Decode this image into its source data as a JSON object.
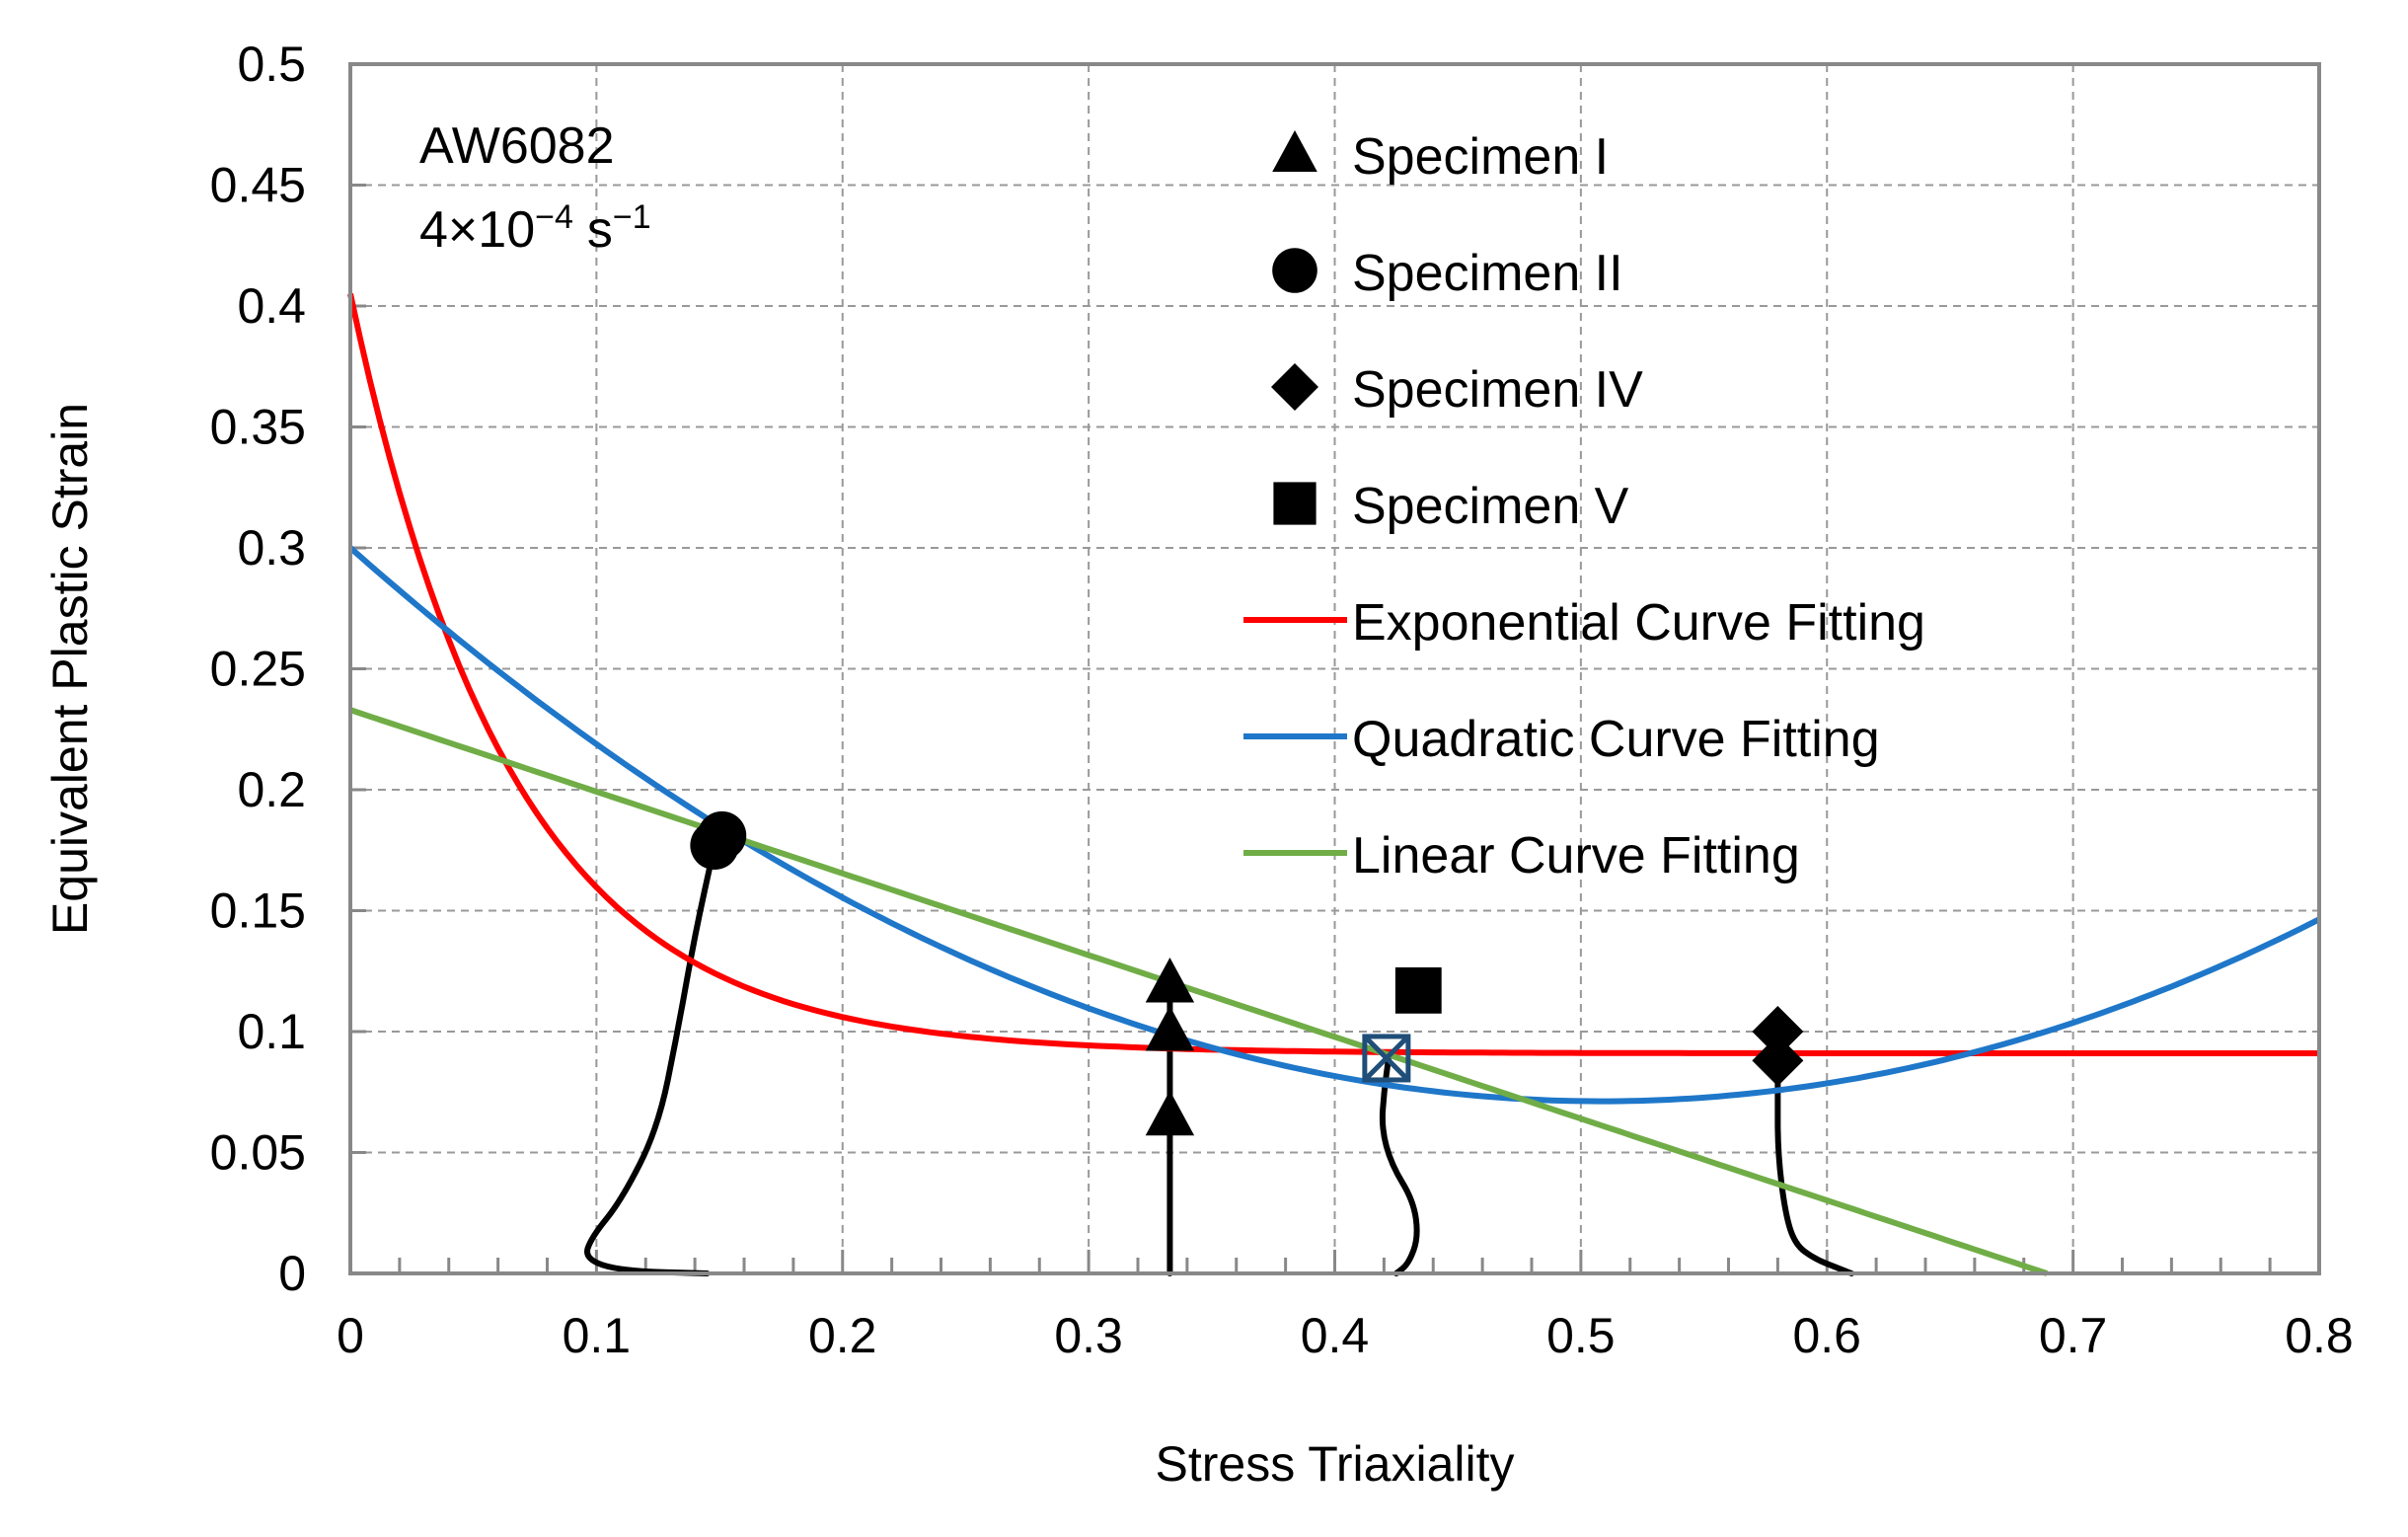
{
  "chart_data": {
    "type": "scatter",
    "title": "",
    "xlabel": "Stress Triaxiality",
    "ylabel": "Equivalent Plastic Strain",
    "xlim": [
      0,
      0.8
    ],
    "ylim": [
      0,
      0.5
    ],
    "x_ticks": [
      "0",
      "0.1",
      "0.2",
      "0.3",
      "0.4",
      "0.5",
      "0.6",
      "0.7",
      "0.8"
    ],
    "y_ticks": [
      "0",
      "0.05",
      "0.1",
      "0.15",
      "0.2",
      "0.25",
      "0.3",
      "0.35",
      "0.4",
      "0.45",
      "0.5"
    ],
    "grid": true,
    "annotation": {
      "material": "AW6082",
      "rate_base": "4×10",
      "rate_exp": "−4",
      "rate_unit": "s",
      "rate_unit_exp": "−1"
    },
    "legend_position": "top-right",
    "series": [
      {
        "name": "Specimen I",
        "kind": "marker",
        "marker": "triangle",
        "color": "#000000",
        "points": [
          [
            0.333,
            0.065
          ],
          [
            0.333,
            0.1
          ],
          [
            0.333,
            0.12
          ]
        ]
      },
      {
        "name": "Specimen II",
        "kind": "marker",
        "marker": "circle",
        "color": "#000000",
        "points": [
          [
            0.148,
            0.177
          ],
          [
            0.151,
            0.181
          ]
        ]
      },
      {
        "name": "Specimen IV",
        "kind": "marker",
        "marker": "diamond",
        "color": "#000000",
        "points": [
          [
            0.58,
            0.088
          ],
          [
            0.58,
            0.1
          ]
        ]
      },
      {
        "name": "Specimen V",
        "kind": "marker",
        "marker": "square",
        "color": "#000000",
        "points": [
          [
            0.434,
            0.117
          ]
        ]
      },
      {
        "name": "Exponential Curve Fitting",
        "kind": "line",
        "color": "#ff0000",
        "function": "exponential",
        "params": {
          "a": 0.314,
          "b": 15.2,
          "c": 0.091
        }
      },
      {
        "name": "Quadratic Curve Fitting",
        "kind": "line",
        "color": "#1f77c9",
        "function": "quadratic",
        "params": {
          "a": 0.885,
          "b": -0.9,
          "c": 0.3
        }
      },
      {
        "name": "Linear Curve Fitting",
        "kind": "line",
        "color": "#70ad47",
        "function": "linear",
        "params": {
          "m": -0.338,
          "c": 0.233
        }
      }
    ],
    "loading_paths": [
      {
        "name": "Specimen I path",
        "points": [
          [
            0.333,
            0.0
          ],
          [
            0.333,
            0.05
          ],
          [
            0.333,
            0.1
          ],
          [
            0.333,
            0.12
          ]
        ]
      },
      {
        "name": "Specimen II path",
        "points": [
          [
            0.145,
            0.0
          ],
          [
            0.11,
            0.001
          ],
          [
            0.095,
            0.006
          ],
          [
            0.098,
            0.015
          ],
          [
            0.11,
            0.03
          ],
          [
            0.125,
            0.06
          ],
          [
            0.133,
            0.1
          ],
          [
            0.14,
            0.14
          ],
          [
            0.148,
            0.177
          ]
        ]
      },
      {
        "name": "Specimen V path",
        "points": [
          [
            0.425,
            0.0
          ],
          [
            0.43,
            0.004
          ],
          [
            0.434,
            0.015
          ],
          [
            0.432,
            0.03
          ],
          [
            0.423,
            0.045
          ],
          [
            0.419,
            0.06
          ],
          [
            0.42,
            0.075
          ],
          [
            0.422,
            0.09
          ]
        ]
      },
      {
        "name": "Specimen IV path",
        "points": [
          [
            0.61,
            0.0
          ],
          [
            0.605,
            0.002
          ],
          [
            0.595,
            0.006
          ],
          [
            0.587,
            0.012
          ],
          [
            0.583,
            0.025
          ],
          [
            0.58,
            0.05
          ],
          [
            0.58,
            0.075
          ],
          [
            0.58,
            0.088
          ]
        ]
      }
    ],
    "specimen_v_intersection": {
      "x": 0.421,
      "y": 0.089,
      "color": "#1f4e79"
    }
  }
}
